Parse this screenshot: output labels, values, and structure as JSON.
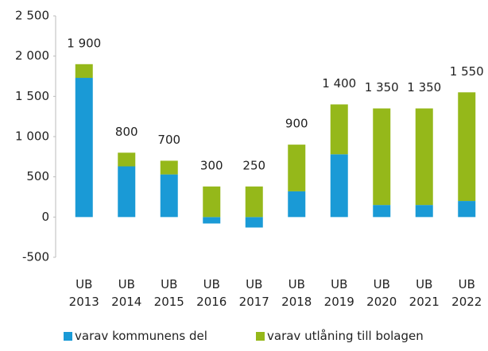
{
  "chart_data": {
    "type": "stacked_bar",
    "categories": [
      "UB 2013",
      "UB 2014",
      "UB 2015",
      "UB 2016",
      "UB 2017",
      "UB 2018",
      "UB 2019",
      "UB 2020",
      "UB 2021",
      "UB 2022"
    ],
    "series": [
      {
        "name": "varav kommunens del",
        "color": "#1a9ad6",
        "values": [
          1730,
          630,
          530,
          -80,
          -130,
          320,
          780,
          150,
          150,
          200
        ]
      },
      {
        "name": "varav utlåning till bolagen",
        "color": "#95b81a",
        "values": [
          170,
          170,
          170,
          380,
          380,
          580,
          620,
          1200,
          1200,
          1350
        ]
      }
    ],
    "totals": [
      1900,
      800,
      700,
      300,
      250,
      900,
      1400,
      1350,
      1350,
      1550
    ],
    "total_labels": [
      "1 900",
      "800",
      "700",
      "300",
      "250",
      "900",
      "1 400",
      "1 350",
      "1 350",
      "1 550"
    ],
    "ylim": [
      -500,
      2500
    ],
    "yticks": [
      -500,
      0,
      500,
      {
        "value": 1000,
        "label": "1 000"
      },
      {
        "value": 1500,
        "label": "1 500"
      },
      {
        "value": 2000,
        "label": "2 000"
      },
      {
        "value": 2500,
        "label": "2 500"
      }
    ],
    "legend": "bottom"
  }
}
